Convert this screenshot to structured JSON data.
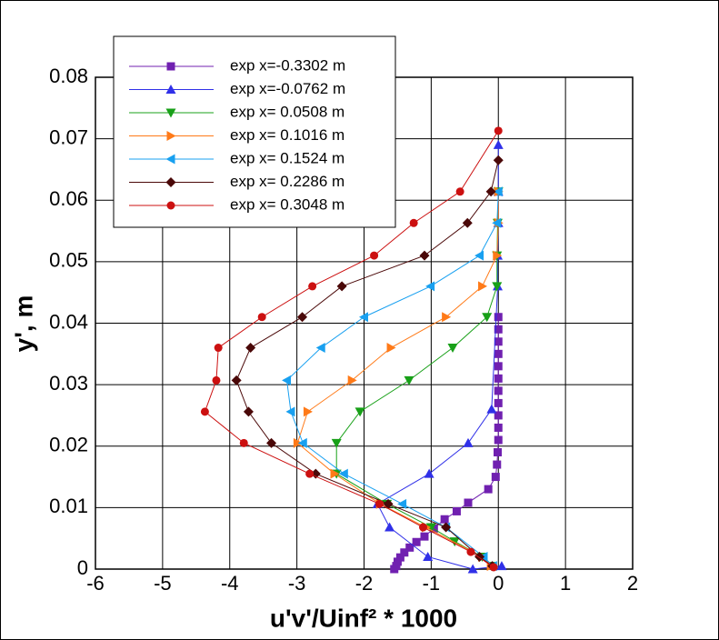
{
  "chart_data": {
    "type": "line",
    "x_label": "u'v'/Uinf² * 1000",
    "y_label": "y', m",
    "xlim": [
      -6,
      2
    ],
    "xticks": [
      -6,
      -5,
      -4,
      -3,
      -2,
      -1,
      0,
      1,
      2
    ],
    "ylim": [
      0,
      0.08
    ],
    "yticks": [
      0,
      0.01,
      0.02,
      0.03,
      0.04,
      0.05,
      0.06,
      0.07,
      0.08
    ],
    "grid": true,
    "legend": "upper left",
    "series": [
      {
        "name": "exp x=-0.3302 m",
        "color": "#7020b0",
        "marker": "square",
        "x": [
          0,
          0,
          0,
          0,
          0,
          0,
          0,
          0,
          0,
          0,
          0,
          -0.01,
          -0.02,
          -0.04,
          -0.15,
          -0.45,
          -0.62,
          -0.8,
          -0.96,
          -1.1,
          -1.22,
          -1.32,
          -1.4,
          -1.46,
          -1.5,
          -1.52,
          -1.55
        ],
        "y": [
          0.041,
          0.039,
          0.037,
          0.035,
          0.033,
          0.031,
          0.029,
          0.027,
          0.025,
          0.023,
          0.021,
          0.019,
          0.017,
          0.015,
          0.013,
          0.0108,
          0.0094,
          0.0081,
          0.0066,
          0.0053,
          0.0044,
          0.0035,
          0.0027,
          0.0019,
          0.0012,
          0.0005,
          0
        ]
      },
      {
        "name": "exp x=-0.0762 m",
        "color": "#3030e8",
        "marker": "triangle-up",
        "x": [
          0,
          0,
          0,
          -0.01,
          -0.01,
          -0.1,
          -0.45,
          -1.03,
          -1.8,
          -1.62,
          -1.05,
          -0.38,
          0.05
        ],
        "y": [
          0.069,
          0.0614,
          0.0563,
          0.051,
          0.046,
          0.026,
          0.0205,
          0.0155,
          0.0106,
          0.0068,
          0.002,
          0,
          0.0005
        ]
      },
      {
        "name": "exp x= 0.0508 m",
        "color": "#18a018",
        "marker": "triangle-down",
        "x": [
          0,
          -0.01,
          -0.02,
          -0.02,
          -0.17,
          -0.68,
          -1.33,
          -2.06,
          -2.41,
          -2.41,
          -1.66,
          -1.0,
          -0.65,
          -0.24,
          -0.1
        ],
        "y": [
          0.0614,
          0.0563,
          0.051,
          0.046,
          0.041,
          0.036,
          0.0307,
          0.0256,
          0.0205,
          0.0155,
          0.0106,
          0.0068,
          0.0045,
          0.002,
          0.0005
        ]
      },
      {
        "name": "exp x= 0.1016 m",
        "color": "#ff7a18",
        "marker": "triangle-right",
        "x": [
          0,
          0,
          -0.02,
          -0.24,
          -0.78,
          -1.6,
          -2.18,
          -2.84,
          -2.99,
          -2.44,
          -1.76,
          -1.08,
          -0.24,
          -0.11
        ],
        "y": [
          0.0614,
          0.0563,
          0.051,
          0.046,
          0.041,
          0.036,
          0.0307,
          0.0256,
          0.0205,
          0.0155,
          0.0106,
          0.0068,
          0.002,
          0.0005
        ]
      },
      {
        "name": "exp x= 0.1524 m",
        "color": "#18a0f0",
        "marker": "triangle-left",
        "x": [
          0,
          -0.02,
          -0.28,
          -1.01,
          -2.0,
          -2.64,
          -3.15,
          -3.09,
          -2.91,
          -2.3,
          -1.43,
          -0.78,
          -0.22,
          -0.08
        ],
        "y": [
          0.0614,
          0.0563,
          0.051,
          0.046,
          0.041,
          0.036,
          0.0307,
          0.0256,
          0.0205,
          0.0155,
          0.0106,
          0.0068,
          0.002,
          0.0005
        ]
      },
      {
        "name": "exp x= 0.2286 m",
        "color": "#4a0808",
        "marker": "diamond",
        "x": [
          0,
          -0.11,
          -0.46,
          -1.1,
          -2.33,
          -2.92,
          -3.69,
          -3.9,
          -3.72,
          -3.38,
          -2.72,
          -1.64,
          -0.78,
          -0.28,
          -0.09
        ],
        "y": [
          0.0665,
          0.0614,
          0.0563,
          0.051,
          0.046,
          0.041,
          0.036,
          0.0307,
          0.0256,
          0.0205,
          0.0155,
          0.0106,
          0.0068,
          0.002,
          0.0005
        ]
      },
      {
        "name": "exp x= 0.3048 m",
        "color": "#cc1010",
        "marker": "circle",
        "x": [
          0,
          -0.57,
          -1.26,
          -1.85,
          -2.77,
          -3.52,
          -4.17,
          -4.2,
          -4.37,
          -3.79,
          -2.81,
          -1.77,
          -1.12,
          -0.41,
          -0.07
        ],
        "y": [
          0.0713,
          0.0614,
          0.0563,
          0.051,
          0.046,
          0.041,
          0.036,
          0.0307,
          0.0256,
          0.0205,
          0.0155,
          0.0106,
          0.0068,
          0.0028,
          0.0003
        ]
      }
    ]
  }
}
